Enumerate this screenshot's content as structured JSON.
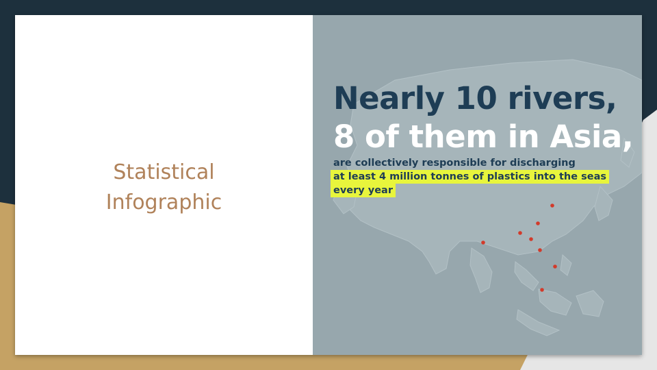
{
  "theme": {
    "dark_band": "#1d303d",
    "gold_band": "#c5a264",
    "light_band": "#e6e6e6",
    "title_color": "#b0825a",
    "panel_bg": "#97a7ad",
    "highlight": "#e8f53c",
    "headline_dark": "#1e3d55",
    "marker_color": "#d23a2a"
  },
  "slide": {
    "title_line1": "Statistical",
    "title_line2": "Infographic"
  },
  "infographic": {
    "headline_line1": "Nearly 10 rivers,",
    "headline_line2": "8 of them in Asia,",
    "sub_line1": "are collectively responsible for discharging",
    "sub_line2": "at least 4 million tonnes of plastics into the seas",
    "sub_line3": "every year",
    "map_icon": "asia-map-icon",
    "marker_icon": "river-marker-icon"
  }
}
